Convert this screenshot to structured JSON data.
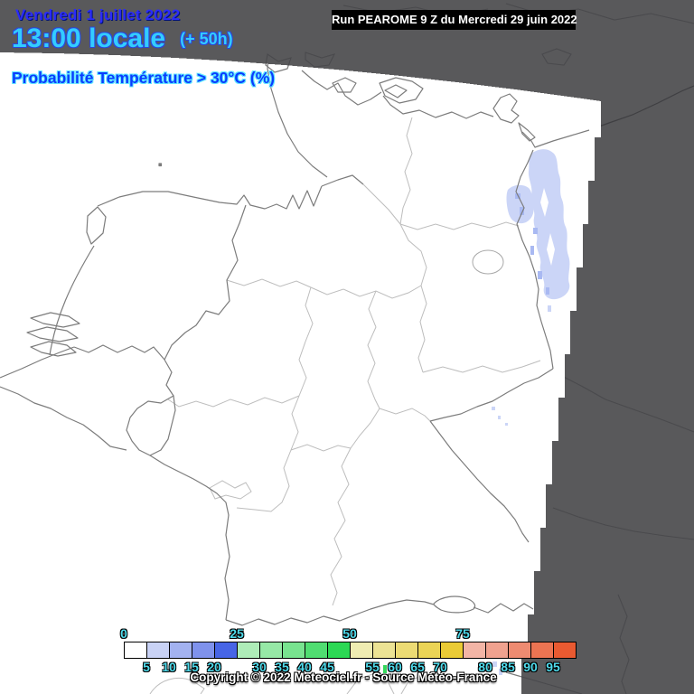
{
  "header": {
    "date_line": "Vendredi 1 juillet 2022",
    "time_line": "13:00 locale",
    "time_offset": "(+ 50h)",
    "subtitle": "Probabilité Température > 30°C (%)",
    "run_label": "Run PEAROME 9 Z du Mercredi 29 juin 2022"
  },
  "footer": {
    "copyright": "Copyright © 2022 Meteociel.fr - Source Météo-France"
  },
  "legend": {
    "title": "Probability scale (%)",
    "start_value": 0,
    "step": 5,
    "major_ticks": [
      0,
      25,
      50,
      75
    ],
    "minor_ticks": [
      5,
      10,
      15,
      20,
      30,
      35,
      40,
      45,
      55,
      60,
      65,
      70,
      80,
      85,
      90,
      95
    ],
    "segment_colors": [
      "#ffffff",
      "#c9d2f5",
      "#a3b2f0",
      "#7f92ec",
      "#4765e6",
      "#aeecb8",
      "#96e8a6",
      "#78e38f",
      "#50dd71",
      "#2cd854",
      "#efecb2",
      "#ece394",
      "#ecdb74",
      "#ebd456",
      "#eacb36",
      "#f2b5a6",
      "#f0a28f",
      "#ee8b71",
      "#ec7452",
      "#e95a31"
    ],
    "tick_color": "#4fdbec"
  },
  "map": {
    "colors": {
      "outside_domain": "#59595b",
      "domain_fill": "#ffffff",
      "national_border": "#7c7c7c",
      "state_border": "#bdbdbd",
      "coast_on_gray": "#3f3f42",
      "faint_on_gray": "#4a4a4d",
      "prob_low": "#cbd5f7",
      "prob_mid": "#a9b9f2",
      "speck_green": "#35d85c"
    }
  }
}
